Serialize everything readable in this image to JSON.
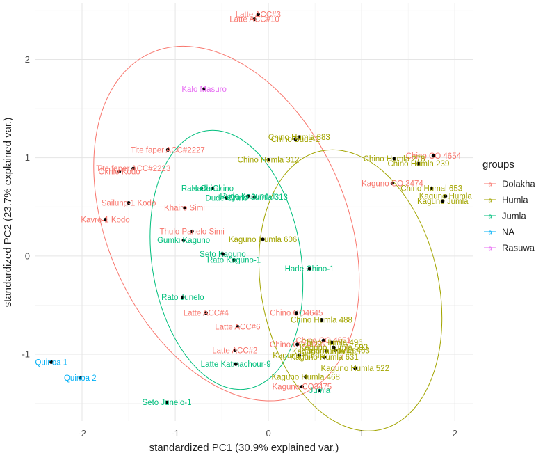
{
  "chart_data": {
    "type": "scatter",
    "xlabel": "standardized PC1 (30.9% explained var.)",
    "ylabel": "standardized PC2 (23.7% explained var.)",
    "xlim": [
      -2.5,
      2.2
    ],
    "ylim": [
      -1.68,
      2.57
    ],
    "x_ticks": [
      -2,
      -1,
      0,
      1,
      2
    ],
    "y_ticks": [
      -1,
      0,
      1,
      2
    ],
    "x_tick_labels": [
      "-2",
      "-1",
      "0",
      "1",
      "2"
    ],
    "y_tick_labels": [
      "-1",
      "0",
      "1",
      "2"
    ],
    "grid": true,
    "legend": {
      "title": "groups",
      "placement": "right",
      "entries": [
        "Dolakha",
        "Humla",
        "Jumla",
        "NA",
        "Rasuwa"
      ]
    },
    "group_colors": {
      "Dolakha": "#F8766D",
      "Humla": "#A3A500",
      "Jumla": "#00BF7D",
      "NA": "#00B0F6",
      "Rasuwa": "#E76BF3"
    },
    "point_color": "#000000",
    "ellipses": [
      {
        "group": "Dolakha",
        "center": [
          -0.45,
          0.33
        ],
        "rx": 1.28,
        "ry": 1.9,
        "angle_deg": -24
      },
      {
        "group": "Humla",
        "center": [
          0.88,
          -0.35
        ],
        "rx": 0.95,
        "ry": 1.45,
        "angle_deg": -12
      },
      {
        "group": "Jumla",
        "center": [
          -0.45,
          -0.04
        ],
        "rx": 0.8,
        "ry": 1.33,
        "angle_deg": -9
      }
    ],
    "points": [
      {
        "label": "Latte ACC#3",
        "group": "Dolakha",
        "x": -0.11,
        "y": 2.46
      },
      {
        "label": "Latte ACC#10",
        "group": "Dolakha",
        "x": -0.15,
        "y": 2.41
      },
      {
        "label": "Kalo Masuro",
        "group": "Rasuwa",
        "x": -0.69,
        "y": 1.7
      },
      {
        "label": "Tite faper ACC#2227",
        "group": "Dolakha",
        "x": -1.08,
        "y": 1.08
      },
      {
        "label": "Tite faper ACC#2223",
        "group": "Dolakha",
        "x": -1.45,
        "y": 0.89
      },
      {
        "label": "Okhle Kodo",
        "group": "Dolakha",
        "x": -1.6,
        "y": 0.86
      },
      {
        "label": "Sailung-1 Kodo",
        "group": "Dolakha",
        "x": -1.5,
        "y": 0.54
      },
      {
        "label": "Kavre-1 Kodo",
        "group": "Dolakha",
        "x": -1.75,
        "y": 0.37
      },
      {
        "label": "Khairo Simi",
        "group": "Dolakha",
        "x": -0.9,
        "y": 0.49
      },
      {
        "label": "Thulo Panelo Simi",
        "group": "Dolakha",
        "x": -0.82,
        "y": 0.25
      },
      {
        "label": "Latte ACC#4",
        "group": "Dolakha",
        "x": -0.67,
        "y": -0.58
      },
      {
        "label": "Latte ACC#6",
        "group": "Dolakha",
        "x": -0.33,
        "y": -0.72
      },
      {
        "label": "Latte ACC#2",
        "group": "Dolakha",
        "x": -0.36,
        "y": -0.96
      },
      {
        "label": "Kaguno CO 3474",
        "group": "Dolakha",
        "x": 1.33,
        "y": 0.74
      },
      {
        "label": "Chino CO 4654",
        "group": "Dolakha",
        "x": 1.77,
        "y": 1.02
      },
      {
        "label": "Chino CO4645",
        "group": "Dolakha",
        "x": 0.3,
        "y": -0.58
      },
      {
        "label": "Chino CO 4651",
        "group": "Dolakha",
        "x": 0.59,
        "y": -0.86
      },
      {
        "label": "Chino CO 4656",
        "group": "Dolakha",
        "x": 0.31,
        "y": -0.9
      },
      {
        "label": "Kaguno CO3475",
        "group": "Dolakha",
        "x": 0.36,
        "y": -1.33
      },
      {
        "label": "Chino Humla 883",
        "group": "Humla",
        "x": 0.33,
        "y": 1.21
      },
      {
        "label": "Chino Bude-1",
        "group": "Humla",
        "x": 0.29,
        "y": 1.19
      },
      {
        "label": "Chino Humla 312",
        "group": "Humla",
        "x": 0.0,
        "y": 0.98
      },
      {
        "label": "Chino Humla 278",
        "group": "Humla",
        "x": 1.35,
        "y": 0.99
      },
      {
        "label": "Chino Humla 239",
        "group": "Humla",
        "x": 1.61,
        "y": 0.94
      },
      {
        "label": "Chino Humal 653",
        "group": "Humla",
        "x": 1.75,
        "y": 0.69
      },
      {
        "label": "Kaguno Humla",
        "group": "Humla",
        "x": 1.9,
        "y": 0.61
      },
      {
        "label": "Kaguno Jumla",
        "group": "Humla",
        "x": 1.87,
        "y": 0.56
      },
      {
        "label": "Kaguno Humla 606",
        "group": "Humla",
        "x": -0.06,
        "y": 0.17
      },
      {
        "label": "Chino Humla 488",
        "group": "Humla",
        "x": 0.57,
        "y": -0.65
      },
      {
        "label": "Chino Humla 496",
        "group": "Humla",
        "x": 0.68,
        "y": -0.88
      },
      {
        "label": "Kaguno Humla 593",
        "group": "Humla",
        "x": 0.7,
        "y": -0.93
      },
      {
        "label": "Kaguno Humla 463",
        "group": "Humla",
        "x": 0.72,
        "y": -0.96
      },
      {
        "label": "Kaguno Humla 455",
        "group": "Humla",
        "x": 0.62,
        "y": -0.97
      },
      {
        "label": "Kaguno Humla",
        "group": "Humla",
        "x": 0.33,
        "y": -1.01
      },
      {
        "label": "Kaguno Humla 631",
        "group": "Humla",
        "x": 0.6,
        "y": -1.03
      },
      {
        "label": "Kaguno Humla 522",
        "group": "Humla",
        "x": 0.93,
        "y": -1.14
      },
      {
        "label": "Kaguno Humla 468",
        "group": "Humla",
        "x": 0.4,
        "y": -1.23
      },
      {
        "label": "Rato Chino",
        "group": "Jumla",
        "x": -0.72,
        "y": 0.69
      },
      {
        "label": "Hade Chino",
        "group": "Jumla",
        "x": -0.6,
        "y": 0.69
      },
      {
        "label": "Dude Chino",
        "group": "Jumla",
        "x": -0.45,
        "y": 0.59
      },
      {
        "label": "Dude Kaguno-1",
        "group": "Jumla",
        "x": -0.22,
        "y": 0.61
      },
      {
        "label": "Kaguno Jumla 313",
        "group": "Jumla",
        "x": -0.15,
        "y": 0.6
      },
      {
        "label": "Gumki Kaguno",
        "group": "Jumla",
        "x": -0.91,
        "y": 0.16
      },
      {
        "label": "Seto Kaguno",
        "group": "Jumla",
        "x": -0.49,
        "y": 0.02
      },
      {
        "label": "Rato Kaguno-1",
        "group": "Jumla",
        "x": -0.37,
        "y": -0.04
      },
      {
        "label": "Hade Chino-1",
        "group": "Jumla",
        "x": 0.44,
        "y": -0.13
      },
      {
        "label": "Rato Junelo",
        "group": "Jumla",
        "x": -0.92,
        "y": -0.42
      },
      {
        "label": "Latte Katmachour-9",
        "group": "Jumla",
        "x": -0.35,
        "y": -1.1
      },
      {
        "label": "Jumla",
        "group": "Jumla",
        "x": 0.55,
        "y": -1.37
      },
      {
        "label": "Seto Junelo-1",
        "group": "Jumla",
        "x": -1.09,
        "y": -1.49
      },
      {
        "label": "Quinoa 1",
        "group": "NA",
        "x": -2.33,
        "y": -1.08
      },
      {
        "label": "Quinoa 2",
        "group": "NA",
        "x": -2.02,
        "y": -1.24
      }
    ]
  }
}
